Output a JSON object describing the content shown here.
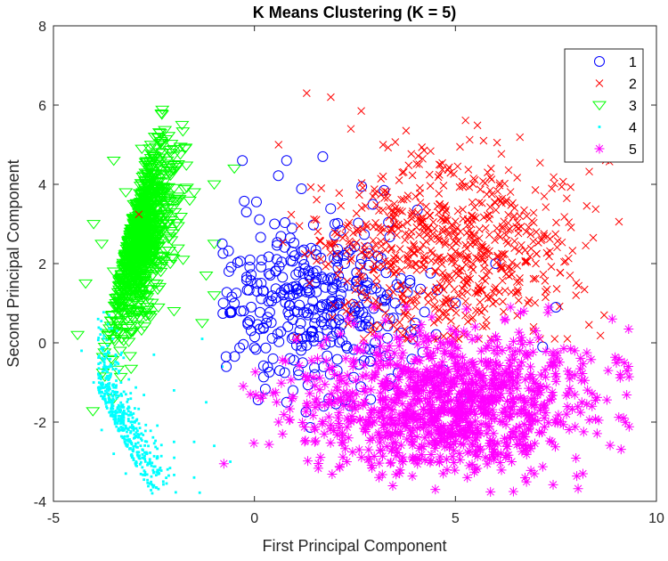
{
  "chart_data": {
    "type": "scatter",
    "title": "K Means Clustering (K = 5)",
    "xlabel": "First Principal Component",
    "ylabel": "Second Principal Component",
    "xlim": [
      -5,
      10
    ],
    "ylim": [
      -4,
      8
    ],
    "xticks": [
      "-5",
      "0",
      "5",
      "10"
    ],
    "yticks": [
      "-4",
      "-2",
      "0",
      "2",
      "4",
      "6",
      "8"
    ],
    "grid": false,
    "legend_position": "top-right",
    "series": [
      {
        "name": "1",
        "marker": "circle",
        "color": "#0000ff",
        "cluster_center": [
          2.0,
          1.0
        ],
        "cluster_spread": [
          1.2,
          1.3
        ],
        "points": [
          [
            -0.3,
            4.6
          ],
          [
            0.8,
            4.6
          ],
          [
            1.7,
            4.7
          ],
          [
            -0.8,
            2.5
          ],
          [
            -0.2,
            3.3
          ],
          [
            0.5,
            3.0
          ],
          [
            -0.5,
            1.0
          ],
          [
            -0.7,
            -0.6
          ],
          [
            1.0,
            2.2
          ],
          [
            1.5,
            1.5
          ],
          [
            2.5,
            0.8
          ],
          [
            3.0,
            0.0
          ],
          [
            1.2,
            -0.5
          ],
          [
            2.0,
            3.0
          ],
          [
            0.3,
            0.5
          ],
          [
            3.5,
            1.0
          ],
          [
            4.0,
            0.5
          ],
          [
            5.0,
            1.0
          ],
          [
            6.0,
            2.0
          ],
          [
            7.5,
            0.9
          ],
          [
            0.8,
            -1.5
          ],
          [
            1.5,
            -0.8
          ]
        ]
      },
      {
        "name": "2",
        "marker": "x",
        "color": "#ff0000",
        "cluster_center": [
          4.8,
          2.4
        ],
        "cluster_spread": [
          1.6,
          1.1
        ],
        "points": [
          [
            1.3,
            6.3
          ],
          [
            1.9,
            6.2
          ],
          [
            2.4,
            5.4
          ],
          [
            3.2,
            5.0
          ],
          [
            3.2,
            4.2
          ],
          [
            4.6,
            4.5
          ],
          [
            5.8,
            4.3
          ],
          [
            6.6,
            3.2
          ],
          [
            7.2,
            2.7
          ],
          [
            8.0,
            1.2
          ],
          [
            8.7,
            0.7
          ],
          [
            6.0,
            1.4
          ],
          [
            3.5,
            3.0
          ],
          [
            4.0,
            2.0
          ],
          [
            5.5,
            2.5
          ],
          [
            7.0,
            2.0
          ],
          [
            2.0,
            2.5
          ],
          [
            0.6,
            5.0
          ],
          [
            2.8,
            1.2
          ],
          [
            6.8,
            1.0
          ]
        ]
      },
      {
        "name": "3",
        "marker": "triangle-down",
        "color": "#00ff00",
        "cluster_center": [
          -3.3,
          2.6
        ],
        "cluster_spread": [
          0.45,
          1.2
        ],
        "points": [
          [
            -1.8,
            5.5
          ],
          [
            -2.3,
            5.0
          ],
          [
            -2.8,
            4.9
          ],
          [
            -3.5,
            4.6
          ],
          [
            -2.1,
            4.8
          ],
          [
            -0.5,
            4.4
          ],
          [
            -1.0,
            4.0
          ],
          [
            -1.5,
            3.8
          ],
          [
            -1.9,
            3.6
          ],
          [
            -1.0,
            2.5
          ],
          [
            -1.2,
            1.7
          ],
          [
            -1.0,
            1.2
          ],
          [
            -1.3,
            0.5
          ],
          [
            -2.0,
            0.8
          ],
          [
            -2.5,
            1.5
          ],
          [
            -4.4,
            0.2
          ],
          [
            -4.2,
            1.5
          ],
          [
            -3.8,
            2.5
          ],
          [
            -3.0,
            3.5
          ],
          [
            -2.7,
            2.5
          ],
          [
            -3.2,
            3.8
          ],
          [
            -4.0,
            3.0
          ],
          [
            -3.5,
            1.8
          ],
          [
            -2.5,
            3.5
          ]
        ]
      },
      {
        "name": "4",
        "marker": "point",
        "color": "#00ffff",
        "cluster_center": [
          -3.3,
          -2.0
        ],
        "cluster_spread": [
          0.5,
          1.0
        ],
        "points": [
          [
            -4.3,
            -0.2
          ],
          [
            -4.0,
            -1.0
          ],
          [
            -3.8,
            -2.2
          ],
          [
            -3.5,
            -2.8
          ],
          [
            -3.2,
            -3.3
          ],
          [
            -2.6,
            -3.0
          ],
          [
            -2.5,
            -3.6
          ],
          [
            -2.0,
            -2.5
          ],
          [
            -1.5,
            -2.5
          ],
          [
            -1.5,
            -3.4
          ],
          [
            -1.0,
            -2.6
          ],
          [
            -0.6,
            -3.0
          ],
          [
            -2.0,
            -1.2
          ],
          [
            -1.2,
            -1.5
          ],
          [
            -0.8,
            -0.6
          ],
          [
            -1.3,
            0.1
          ],
          [
            -2.5,
            -0.3
          ],
          [
            -3.0,
            -2.0
          ],
          [
            -3.6,
            -1.5
          ]
        ]
      },
      {
        "name": "5",
        "marker": "asterisk",
        "color": "#ff00ff",
        "cluster_center": [
          4.8,
          -1.5
        ],
        "cluster_spread": [
          1.8,
          0.9
        ],
        "points": [
          [
            -0.1,
            -1.3
          ],
          [
            0.6,
            -2.0
          ],
          [
            0.7,
            -2.3
          ],
          [
            1.5,
            -2.5
          ],
          [
            2.3,
            -3.0
          ],
          [
            3.1,
            -3.4
          ],
          [
            4.6,
            -3.0
          ],
          [
            5.5,
            -3.2
          ],
          [
            6.4,
            -3.0
          ],
          [
            7.4,
            -2.5
          ],
          [
            8.4,
            -1.6
          ],
          [
            8.8,
            -0.7
          ],
          [
            9.1,
            -0.8
          ],
          [
            8.9,
            0.6
          ],
          [
            7.0,
            0.3
          ],
          [
            6.0,
            -0.5
          ],
          [
            4.0,
            -1.0
          ],
          [
            3.0,
            -0.8
          ],
          [
            5.0,
            -2.0
          ],
          [
            2.0,
            -1.5
          ],
          [
            4.5,
            -3.7
          ],
          [
            6.7,
            0.8
          ]
        ]
      }
    ]
  }
}
